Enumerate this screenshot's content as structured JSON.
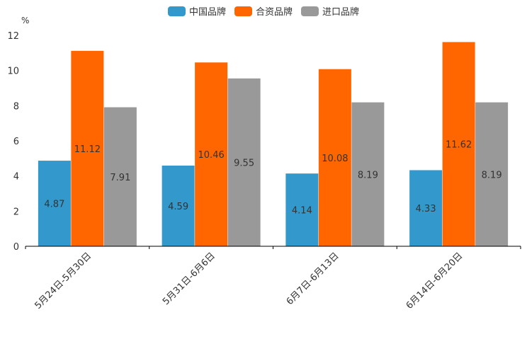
{
  "chart_data": {
    "type": "bar",
    "title": "",
    "xlabel": "",
    "ylabel": "%",
    "ylim": [
      0,
      12
    ],
    "yticks": [
      "0",
      "2",
      "4",
      "6",
      "8",
      "10",
      "12"
    ],
    "categories": [
      "5月24日-5月30日",
      "5月31日-6月6日",
      "6月7日-6月13日",
      "6月14日-6月20日"
    ],
    "series": [
      {
        "name": "中国品牌",
        "color": "#3399cc",
        "values": [
          4.87,
          4.59,
          4.14,
          4.33
        ],
        "labels": [
          "4.87",
          "4.59",
          "4.14",
          "4.33"
        ]
      },
      {
        "name": "合资品牌",
        "color": "#ff6600",
        "values": [
          11.12,
          10.46,
          10.08,
          11.62
        ],
        "labels": [
          "11.12",
          "10.46",
          "10.08",
          "11.62"
        ]
      },
      {
        "name": "进口品牌",
        "color": "#999999",
        "values": [
          7.91,
          9.55,
          8.19,
          8.19
        ],
        "labels": [
          "7.91",
          "9.55",
          "8.19",
          "8.19"
        ]
      }
    ],
    "legend_position": "top-center",
    "grid": false
  }
}
